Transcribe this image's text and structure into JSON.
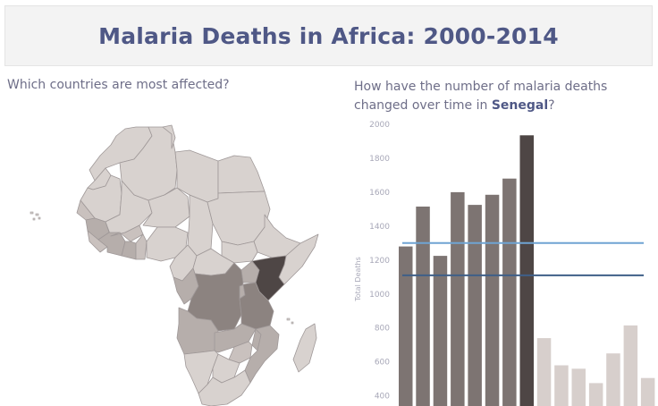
{
  "header": {
    "title": "Malaria Deaths in Africa: 2000-2014"
  },
  "left_panel": {
    "question": "Which countries are most affected?"
  },
  "right_panel": {
    "question_prefix": "How have the number of malaria deaths changed over time in ",
    "country": "Senegal",
    "question_suffix": "?"
  },
  "colors": {
    "title": "#4f5886",
    "text": "#6e6e88",
    "map_light": "#d8d2cf",
    "map_medium": "#b6aeab",
    "map_dark": "#8c8380",
    "map_darkest": "#4e4645",
    "bar_dark": "#7d7472",
    "bar_darkest": "#4e4645",
    "bar_light": "#d7cfcc",
    "ref_line_1": "#6fa4d3",
    "ref_line_2": "#3f5f88"
  },
  "chart_data": {
    "type": "bar",
    "ylabel": "Total Deaths",
    "y_ticks": [
      400,
      600,
      800,
      1000,
      1200,
      1400,
      1600,
      1800,
      2000
    ],
    "ylim": [
      340,
      2000
    ],
    "values": [
      1280,
      1515,
      1225,
      1600,
      1525,
      1585,
      1680,
      1935,
      740,
      580,
      560,
      475,
      650,
      815,
      505
    ],
    "reference_lines": [
      1300,
      1110
    ]
  }
}
